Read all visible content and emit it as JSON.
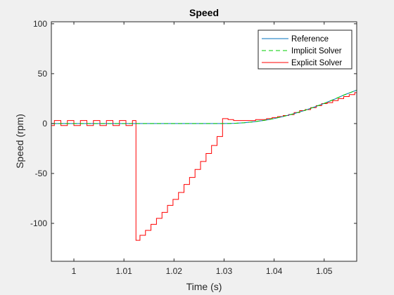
{
  "chart_data": {
    "type": "line",
    "title": "Speed",
    "xlabel": "Time (s)",
    "ylabel": "Speed (rpm)",
    "xlim": [
      0.9955,
      1.0565
    ],
    "ylim": [
      -138,
      102
    ],
    "xticks": [
      1,
      1.01,
      1.02,
      1.03,
      1.04,
      1.05
    ],
    "xtick_labels": [
      "1",
      "1.01",
      "1.02",
      "1.03",
      "1.04",
      "1.05"
    ],
    "yticks": [
      100,
      50,
      0,
      -50,
      -100
    ],
    "ytick_labels": [
      "100",
      "50",
      "0",
      "-50",
      "-100"
    ],
    "grid": false,
    "legend_position": "top-right",
    "series": [
      {
        "name": "Reference",
        "color": "#0072bd",
        "style": "solid",
        "step": false,
        "x": [
          0.9955,
          1.03,
          1.032,
          1.034,
          1.036,
          1.038,
          1.04,
          1.042,
          1.044,
          1.046,
          1.048,
          1.05,
          1.052,
          1.054,
          1.0565
        ],
        "y": [
          0,
          0,
          0.2,
          0.8,
          1.8,
          3.2,
          5,
          7.3,
          10,
          13,
          16.5,
          20.2,
          24.3,
          28.7,
          33.5
        ]
      },
      {
        "name": "Implicit Solver",
        "color": "#00cc00",
        "style": "dashed",
        "step": false,
        "x": [
          0.9955,
          1.03,
          1.032,
          1.034,
          1.036,
          1.038,
          1.04,
          1.042,
          1.044,
          1.046,
          1.048,
          1.05,
          1.052,
          1.054,
          1.0565
        ],
        "y": [
          0,
          0,
          0.2,
          0.8,
          1.8,
          3.2,
          5,
          7.3,
          10,
          13,
          16.5,
          20.2,
          24.3,
          28.7,
          33.5
        ]
      },
      {
        "name": "Explicit Solver",
        "color": "#ff0000",
        "style": "solid",
        "step": true,
        "x": [
          0.9955,
          0.9961,
          0.9974,
          0.9987,
          1.0,
          1.0013,
          1.0026,
          1.0039,
          1.0052,
          1.0065,
          1.0078,
          1.0091,
          1.0104,
          1.0117,
          1.0124,
          1.0132,
          1.0143,
          1.0154,
          1.0165,
          1.0176,
          1.0187,
          1.0198,
          1.0209,
          1.022,
          1.0231,
          1.0242,
          1.0253,
          1.0264,
          1.0275,
          1.0286,
          1.029,
          1.0297,
          1.0308,
          1.0319,
          1.033,
          1.0341,
          1.0352,
          1.0363,
          1.0374,
          1.0385,
          1.0396,
          1.0407,
          1.0418,
          1.0429,
          1.044,
          1.0451,
          1.0462,
          1.0473,
          1.0484,
          1.0495,
          1.0506,
          1.0517,
          1.0528,
          1.0539,
          1.055,
          1.0561
        ],
        "y": [
          -2,
          3,
          -2,
          3,
          -2,
          3,
          -2,
          3,
          -2,
          3,
          -2,
          3,
          -2,
          3,
          -117,
          -112,
          -107,
          -101,
          -95,
          -89,
          -82,
          -76,
          -69,
          -61,
          -54,
          -46,
          -38,
          -30,
          -22,
          -13,
          -13,
          5,
          4,
          3,
          3,
          3,
          3,
          4,
          4,
          5,
          6,
          7,
          8,
          9,
          11,
          13,
          14,
          16,
          18,
          20,
          21,
          23,
          25,
          27,
          29,
          31
        ]
      }
    ]
  }
}
